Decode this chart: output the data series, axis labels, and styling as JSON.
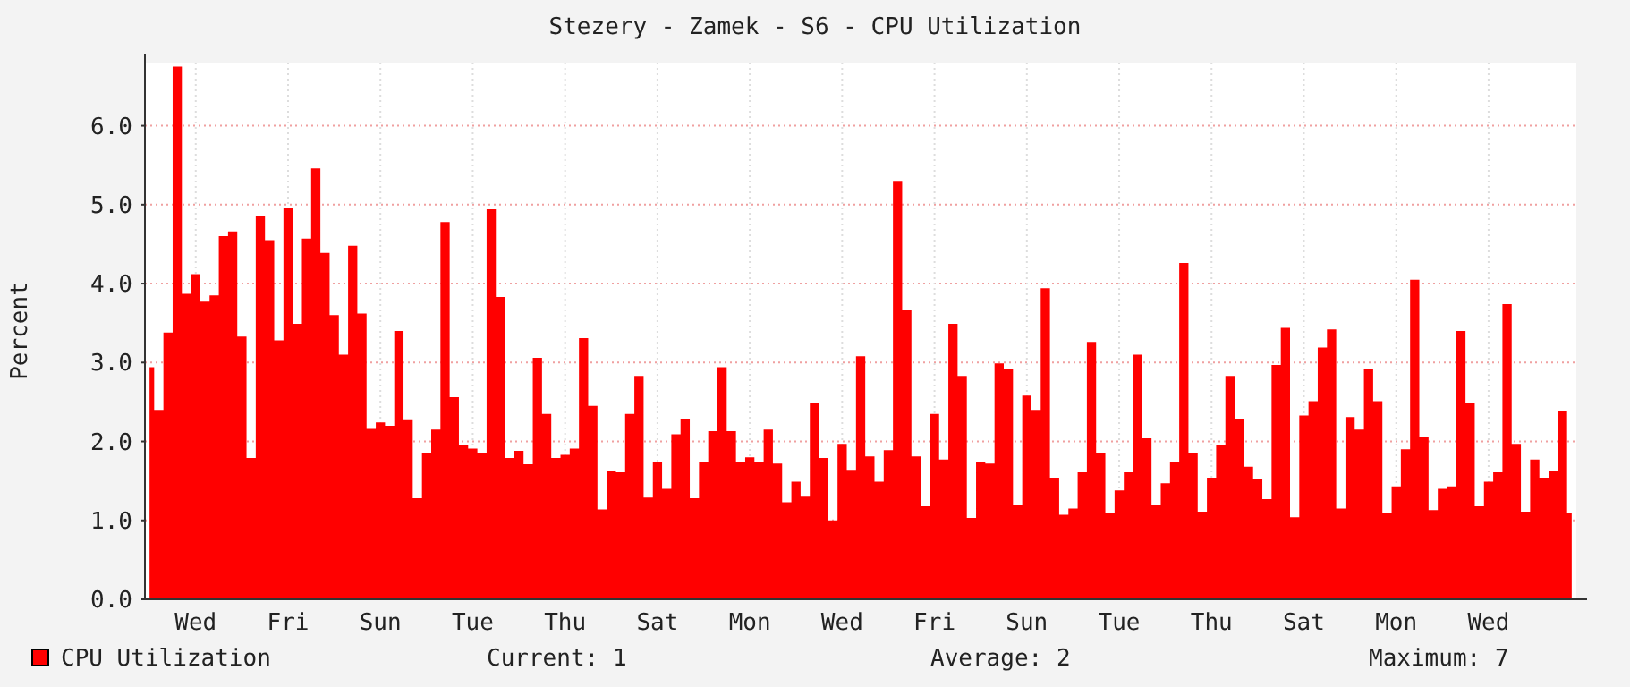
{
  "chart_data": {
    "type": "area",
    "title": "Stezery - Zamek - S6 - CPU Utilization",
    "ylabel": "Percent",
    "categories": [
      null,
      null,
      null,
      null,
      null,
      "Wed",
      null,
      null,
      null,
      null,
      null,
      null,
      null,
      null,
      null,
      "Fri",
      null,
      null,
      null,
      null,
      null,
      null,
      null,
      null,
      null,
      "Sun",
      null,
      null,
      null,
      null,
      null,
      null,
      null,
      null,
      null,
      "Tue",
      null,
      null,
      null,
      null,
      null,
      null,
      null,
      null,
      null,
      "Thu",
      null,
      null,
      null,
      null,
      null,
      null,
      null,
      null,
      null,
      "Sat",
      null,
      null,
      null,
      null,
      null,
      null,
      null,
      null,
      null,
      "Mon",
      null,
      null,
      null,
      null,
      null,
      null,
      null,
      null,
      null,
      "Wed",
      null,
      null,
      null,
      null,
      null,
      null,
      null,
      null,
      null,
      "Fri",
      null,
      null,
      null,
      null,
      null,
      null,
      null,
      null,
      null,
      "Sun",
      null,
      null,
      null,
      null,
      null,
      null,
      null,
      null,
      null,
      "Tue",
      null,
      null,
      null,
      null,
      null,
      null,
      null,
      null,
      null,
      "Thu",
      null,
      null,
      null,
      null,
      null,
      null,
      null,
      null,
      null,
      "Sat",
      null,
      null,
      null,
      null,
      null,
      null,
      null,
      null,
      null,
      "Mon",
      null,
      null,
      null,
      null,
      null,
      null,
      null,
      null,
      null,
      "Wed",
      null,
      null,
      null,
      null,
      null,
      null,
      null,
      null,
      null
    ],
    "series": [
      {
        "name": "CPU Utilization",
        "color": "#ff0000",
        "values": [
          2.94,
          2.4,
          3.38,
          6.75,
          3.87,
          4.12,
          3.77,
          3.85,
          4.6,
          4.66,
          3.33,
          1.79,
          4.85,
          4.55,
          3.28,
          4.96,
          3.49,
          4.57,
          5.46,
          4.39,
          3.6,
          3.1,
          4.48,
          3.62,
          2.16,
          2.24,
          2.2,
          3.4,
          2.28,
          1.28,
          1.86,
          2.15,
          4.78,
          2.56,
          1.95,
          1.91,
          1.86,
          4.94,
          3.83,
          1.79,
          1.88,
          1.71,
          3.06,
          2.35,
          1.79,
          1.83,
          1.91,
          3.31,
          2.45,
          1.14,
          1.63,
          1.61,
          2.35,
          2.83,
          1.29,
          1.74,
          1.4,
          2.09,
          2.29,
          1.28,
          1.74,
          2.13,
          2.94,
          2.13,
          1.74,
          1.8,
          1.74,
          2.15,
          1.72,
          1.23,
          1.49,
          1.3,
          2.49,
          1.79,
          1.0,
          1.97,
          1.64,
          3.08,
          1.81,
          1.49,
          1.89,
          5.3,
          3.67,
          1.81,
          1.18,
          2.35,
          1.77,
          3.49,
          2.83,
          1.03,
          1.74,
          1.72,
          2.99,
          2.92,
          1.2,
          2.58,
          2.4,
          3.94,
          1.54,
          1.07,
          1.15,
          1.61,
          3.26,
          1.86,
          1.09,
          1.38,
          1.61,
          3.1,
          2.04,
          1.2,
          1.47,
          1.74,
          4.26,
          1.86,
          1.11,
          1.54,
          1.95,
          2.83,
          2.29,
          1.68,
          1.52,
          1.27,
          2.97,
          3.44,
          1.04,
          2.33,
          2.51,
          3.19,
          3.42,
          1.15,
          2.31,
          2.15,
          2.92,
          2.51,
          1.09,
          1.43,
          1.9,
          4.05,
          2.06,
          1.13,
          1.4,
          1.43,
          3.4,
          2.49,
          1.18,
          1.49,
          1.61,
          3.74,
          1.97,
          1.11,
          1.77,
          1.54,
          1.63,
          2.38,
          1.09
        ]
      }
    ],
    "ylim": [
      0,
      6.8
    ],
    "yticks": [
      {
        "value": 0,
        "label": "0.0"
      },
      {
        "value": 1,
        "label": "1.0"
      },
      {
        "value": 2,
        "label": "2.0"
      },
      {
        "value": 3,
        "label": "3.0"
      },
      {
        "value": 4,
        "label": "4.0"
      },
      {
        "value": 5,
        "label": "5.0"
      },
      {
        "value": 6,
        "label": "6.0"
      }
    ],
    "grid": true,
    "legend": "bottom left",
    "annotations": [
      "Current: 1",
      "Average: 2",
      "Maximum: 7"
    ]
  }
}
